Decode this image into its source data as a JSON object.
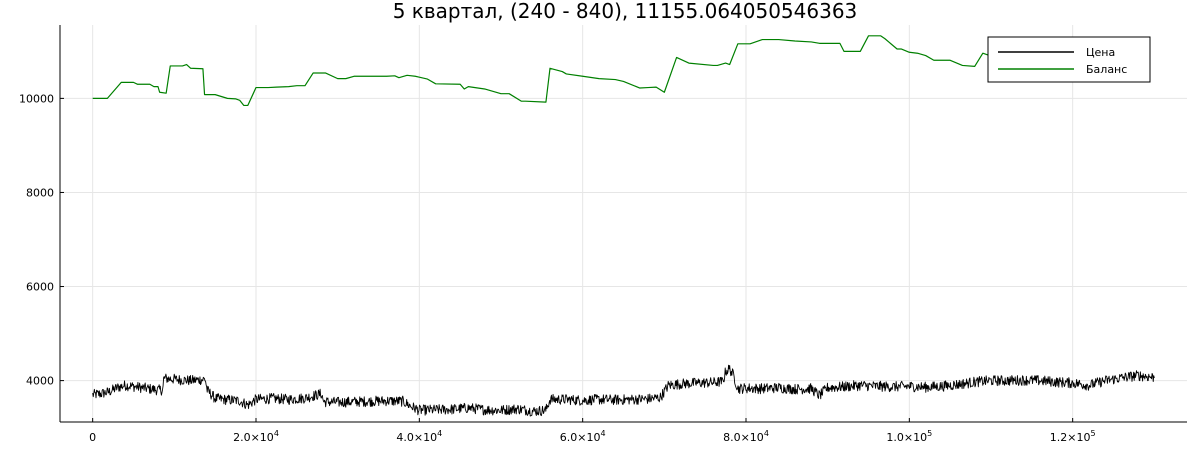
{
  "chart_data": {
    "type": "line",
    "title": "5 квартал, (240 - 840), 11155.064050546363",
    "xlabel": "",
    "ylabel": "",
    "xlim": [
      -4000,
      134000
    ],
    "ylim": [
      3120,
      11560
    ],
    "grid": true,
    "legend_position": "top-right",
    "x_ticks": [
      {
        "value": 0,
        "mantissa": "0",
        "exp": ""
      },
      {
        "value": 20000,
        "mantissa": "2.0×10",
        "exp": "4"
      },
      {
        "value": 40000,
        "mantissa": "4.0×10",
        "exp": "4"
      },
      {
        "value": 60000,
        "mantissa": "6.0×10",
        "exp": "4"
      },
      {
        "value": 80000,
        "mantissa": "8.0×10",
        "exp": "4"
      },
      {
        "value": 100000,
        "mantissa": "1.0×10",
        "exp": "5"
      },
      {
        "value": 120000,
        "mantissa": "1.2×10",
        "exp": "5"
      }
    ],
    "y_ticks": [
      {
        "value": 4000,
        "label": "4000"
      },
      {
        "value": 6000,
        "label": "6000"
      },
      {
        "value": 8000,
        "label": "8000"
      },
      {
        "value": 10000,
        "label": "10000"
      }
    ],
    "series": [
      {
        "name": "Цена",
        "color": "#000000",
        "noise": 140,
        "x": [
          0,
          1000,
          2000,
          3000,
          4000,
          6000,
          8000,
          8600,
          8700,
          10000,
          12000,
          13800,
          14000,
          15000,
          16000,
          18000,
          19000,
          20000,
          22000,
          24000,
          26000,
          28000,
          28300,
          30000,
          32000,
          34000,
          36000,
          38000,
          39000,
          40000,
          42000,
          44000,
          46000,
          48000,
          50000,
          52000,
          54000,
          55500,
          56000,
          58000,
          60000,
          62000,
          64000,
          66000,
          68000,
          69500,
          70500,
          72000,
          74000,
          76000,
          77200,
          77500,
          78000,
          78500,
          79000,
          80000,
          82000,
          84000,
          86000,
          88000,
          89000,
          90000,
          92000,
          94000,
          96000,
          98000,
          100000,
          102000,
          104000,
          106000,
          108000,
          110000,
          112000,
          114000,
          116000,
          118000,
          120000,
          122000,
          124000,
          126000,
          128000,
          130000
        ],
        "y": [
          3700,
          3720,
          3760,
          3850,
          3900,
          3850,
          3800,
          3800,
          4050,
          4030,
          4000,
          4030,
          3800,
          3620,
          3600,
          3570,
          3480,
          3600,
          3620,
          3600,
          3630,
          3720,
          3550,
          3540,
          3550,
          3560,
          3570,
          3560,
          3450,
          3370,
          3380,
          3390,
          3420,
          3380,
          3370,
          3400,
          3350,
          3370,
          3600,
          3600,
          3580,
          3600,
          3590,
          3600,
          3610,
          3640,
          3900,
          3930,
          3950,
          3960,
          3980,
          4200,
          4250,
          4100,
          3830,
          3840,
          3830,
          3850,
          3820,
          3830,
          3680,
          3850,
          3870,
          3900,
          3880,
          3870,
          3880,
          3860,
          3880,
          3920,
          3970,
          4000,
          4000,
          4010,
          4000,
          3970,
          3950,
          3900,
          4000,
          4060,
          4110,
          4070
        ]
      },
      {
        "name": "Баланс",
        "color": "#008000",
        "noise": 0,
        "x": [
          0,
          1800,
          3500,
          5000,
          5500,
          7000,
          7500,
          8000,
          8200,
          9000,
          9500,
          11000,
          11500,
          12000,
          13500,
          13700,
          15000,
          16500,
          17500,
          18000,
          18500,
          19000,
          20000,
          21500,
          22500,
          24000,
          25000,
          26000,
          27000,
          28500,
          30000,
          31000,
          32000,
          34000,
          36000,
          37000,
          37500,
          38500,
          39500,
          40000,
          41000,
          42000,
          45000,
          45500,
          46000,
          48000,
          49000,
          50000,
          51000,
          52500,
          53000,
          55500,
          56000,
          57500,
          58000,
          60000,
          62000,
          64000,
          65000,
          67000,
          68000,
          69000,
          70000,
          71500,
          73000,
          76000,
          76500,
          77500,
          78000,
          79000,
          80500,
          82000,
          84000,
          86000,
          88000,
          89000,
          90000,
          91500,
          92000,
          94000,
          95000,
          96500,
          97000,
          98500,
          99000,
          100000,
          101000,
          102000,
          103000,
          105000,
          106500,
          108000,
          109000,
          110000
        ],
        "y": [
          10000,
          10000,
          10340,
          10340,
          10300,
          10300,
          10250,
          10250,
          10130,
          10110,
          10690,
          10690,
          10720,
          10640,
          10630,
          10080,
          10080,
          10000,
          9990,
          9960,
          9850,
          9850,
          10230,
          10230,
          10240,
          10250,
          10270,
          10270,
          10540,
          10540,
          10420,
          10420,
          10470,
          10470,
          10470,
          10480,
          10440,
          10490,
          10470,
          10450,
          10410,
          10310,
          10300,
          10200,
          10250,
          10200,
          10150,
          10100,
          10100,
          9940,
          9940,
          9920,
          10640,
          10570,
          10520,
          10470,
          10420,
          10400,
          10360,
          10220,
          10230,
          10240,
          10130,
          10870,
          10750,
          10700,
          10700,
          10750,
          10720,
          11160,
          11160,
          11250,
          11250,
          11220,
          11200,
          11170,
          11170,
          11170,
          11000,
          11000,
          11330,
          11330,
          11270,
          11050,
          11050,
          10980,
          10960,
          10910,
          10810,
          10810,
          10700,
          10680,
          10960,
          10900
        ]
      }
    ]
  }
}
